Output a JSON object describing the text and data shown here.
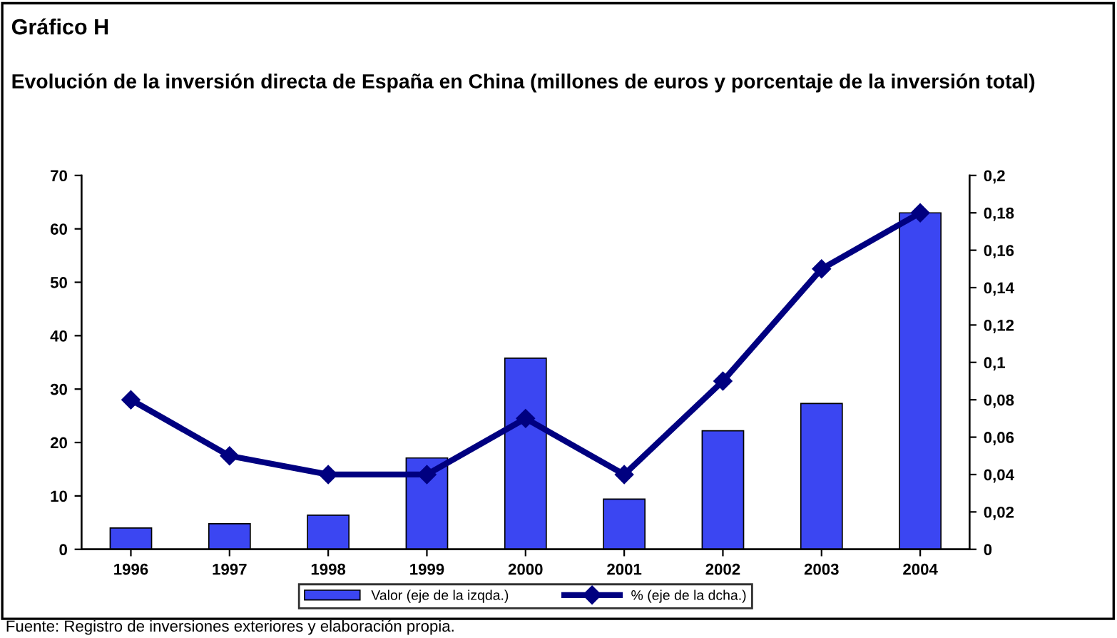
{
  "chart_data": {
    "type": "bar",
    "title": "Gráfico H",
    "subtitle": "Evolución de la inversión directa de España en China (millones de euros y porcentaje de la inversión total)",
    "categories": [
      "1996",
      "1997",
      "1998",
      "1999",
      "2000",
      "2001",
      "2002",
      "2003",
      "2004"
    ],
    "series": [
      {
        "name": "Valor (eje de la izqda.)",
        "color": "#3b46f2",
        "values": [
          4.0,
          4.8,
          6.4,
          17.1,
          35.8,
          9.4,
          22.2,
          27.3,
          63
        ]
      },
      {
        "name": "% (eje de la dcha.)",
        "type": "line",
        "axis": "y2",
        "color": "#000080",
        "marker": "diamond",
        "values": [
          0.08,
          0.05,
          0.04,
          0.04,
          0.07,
          0.04,
          0.09,
          0.15,
          0.18
        ]
      }
    ],
    "ylim": [
      0,
      70
    ],
    "yticks": [
      0,
      10,
      20,
      30,
      40,
      50,
      60,
      70
    ],
    "y2lim": [
      0,
      0.2
    ],
    "y2ticks": [
      0,
      {
        "value": 0.02,
        "label": "0,02"
      },
      {
        "value": 0.04,
        "label": "0,04"
      },
      {
        "value": 0.06,
        "label": "0,06"
      },
      {
        "value": 0.08,
        "label": "0,08"
      },
      {
        "value": 0.1,
        "label": "0,1"
      },
      {
        "value": 0.12,
        "label": "0,12"
      },
      {
        "value": 0.14,
        "label": "0,14"
      },
      {
        "value": 0.16,
        "label": "0,16"
      },
      {
        "value": 0.18,
        "label": "0,18"
      },
      {
        "value": 0.2,
        "label": "0,2"
      }
    ],
    "grid": false,
    "legend": "bottom",
    "annotations": [
      "Fuente: Registro de inversiones exteriores y elaboración propia."
    ]
  }
}
